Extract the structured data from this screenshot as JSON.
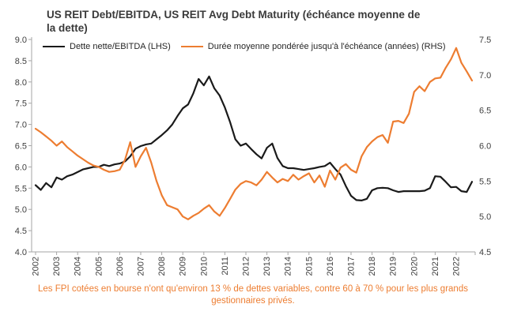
{
  "chart_data": {
    "type": "line",
    "title": "US REIT Debt/EBITDA, US REIT Avg Debt Maturity (échéance moyenne de la dette)",
    "x_start_year": 2002,
    "points_per_year": 4,
    "grid": false,
    "legend_position": "top-left",
    "x_ticks": [
      "2002",
      "2003",
      "2004",
      "2005",
      "2006",
      "2007",
      "2008",
      "2009",
      "2010",
      "2011",
      "2012",
      "2013",
      "2014",
      "2015",
      "2016",
      "2017",
      "2018",
      "2019",
      "2020",
      "2021",
      "2022"
    ],
    "left_axis": {
      "min": 4.0,
      "max": 9.0,
      "step": 0.5,
      "ticks": [
        "9.0",
        "8.5",
        "8.0",
        "7.5",
        "7.0",
        "6.5",
        "6.0",
        "5.5",
        "5.0",
        "4.5",
        "4.0"
      ]
    },
    "right_axis": {
      "min": 4.5,
      "max": 7.5,
      "step": 0.5,
      "ticks": [
        "7.5",
        "7.0",
        "6.5",
        "6.0",
        "5.5",
        "5.0",
        "4.5"
      ]
    },
    "series": [
      {
        "name": "Dette nette/EBITDA (LHS)",
        "axis": "left",
        "color": "#1a1a1a",
        "values": [
          5.57,
          5.46,
          5.62,
          5.52,
          5.75,
          5.7,
          5.78,
          5.82,
          5.88,
          5.94,
          5.97,
          6.0,
          6.0,
          6.05,
          6.02,
          6.06,
          6.08,
          6.13,
          6.25,
          6.43,
          6.49,
          6.53,
          6.55,
          6.65,
          6.75,
          6.86,
          7.0,
          7.2,
          7.38,
          7.47,
          7.73,
          8.07,
          7.92,
          8.13,
          7.85,
          7.68,
          7.4,
          7.05,
          6.65,
          6.5,
          6.55,
          6.42,
          6.3,
          6.2,
          6.45,
          6.55,
          6.21,
          6.02,
          5.97,
          5.97,
          5.95,
          5.93,
          5.95,
          5.97,
          6.0,
          6.02,
          6.1,
          5.95,
          5.82,
          5.55,
          5.32,
          5.22,
          5.21,
          5.25,
          5.45,
          5.5,
          5.51,
          5.5,
          5.45,
          5.41,
          5.43,
          5.43,
          5.43,
          5.43,
          5.44,
          5.5,
          5.78,
          5.77,
          5.65,
          5.52,
          5.53,
          5.43,
          5.41,
          5.65
        ]
      },
      {
        "name": "Durée moyenne pondérée jusqu'à l'échéance (années) (RHS)",
        "axis": "right",
        "color": "#ED7D31",
        "values": [
          6.24,
          6.19,
          6.13,
          6.07,
          6.0,
          6.06,
          5.98,
          5.92,
          5.86,
          5.81,
          5.76,
          5.72,
          5.7,
          5.66,
          5.63,
          5.64,
          5.66,
          5.8,
          6.05,
          5.7,
          5.85,
          5.97,
          5.76,
          5.5,
          5.3,
          5.16,
          5.13,
          5.1,
          5.0,
          4.96,
          5.01,
          5.05,
          5.11,
          5.16,
          5.07,
          5.01,
          5.12,
          5.25,
          5.38,
          5.46,
          5.5,
          5.48,
          5.44,
          5.52,
          5.63,
          5.55,
          5.48,
          5.53,
          5.5,
          5.59,
          5.52,
          5.57,
          5.61,
          5.48,
          5.58,
          5.42,
          5.65,
          5.52,
          5.69,
          5.74,
          5.66,
          5.62,
          5.85,
          5.98,
          6.06,
          6.12,
          6.15,
          6.04,
          6.34,
          6.35,
          6.32,
          6.45,
          6.76,
          6.84,
          6.77,
          6.9,
          6.95,
          6.96,
          7.1,
          7.22,
          7.38,
          7.17,
          7.05,
          6.92
        ]
      }
    ]
  },
  "footnote": "Les FPI cotées en bourse n'ont qu'environ 13 % de dettes variables, contre 60 à 70 % pour les plus grands gestionnaires privés.",
  "colors": {
    "series_black": "#1a1a1a",
    "series_orange": "#ED7D31",
    "footnote_text": "#ED7D31",
    "axis_line": "#A6A6A6",
    "tick_text": "#404040"
  }
}
